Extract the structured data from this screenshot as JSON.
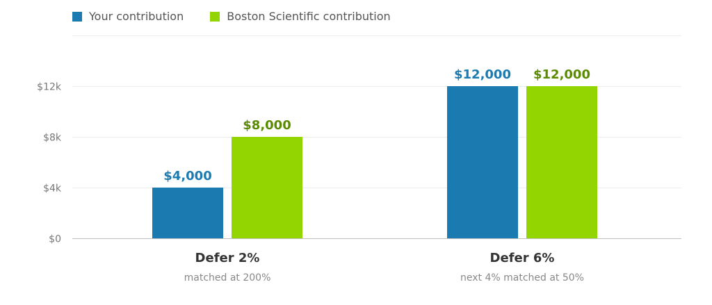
{
  "chart_data": {
    "type": "bar",
    "categories": [
      "Defer 2%",
      "Defer 6%"
    ],
    "category_sublabels": [
      "matched at 200%",
      "next 4% matched at 50%"
    ],
    "series": [
      {
        "name": "Your contribution",
        "values": [
          4000,
          12000
        ],
        "labels": [
          "$4,000",
          "$12,000"
        ],
        "color": "#1b7bb0",
        "label_color": "#1b7bb0"
      },
      {
        "name": "Boston Scientific contribution",
        "values": [
          8000,
          12000
        ],
        "labels": [
          "$8,000",
          "$12,000"
        ],
        "color": "#93d500",
        "label_color": "#5a8a00"
      }
    ],
    "yticks": [
      0,
      4000,
      8000,
      12000
    ],
    "ytick_labels": [
      "$0",
      "$4k",
      "$8k",
      "$12k"
    ],
    "ylim": [
      0,
      16000
    ],
    "grid": true,
    "legend_position": "top-left"
  }
}
